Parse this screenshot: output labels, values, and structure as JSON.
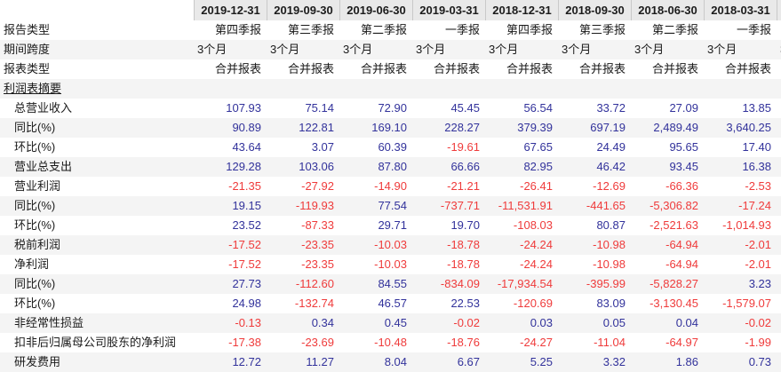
{
  "colors": {
    "positive_value": "#32329b",
    "negative_value": "#ef3b3b",
    "header_bg": "#e9e9e9",
    "stripe_bg": "#f4f4f4",
    "icon_bar_light": "#a6c5e9",
    "icon_bar_mid": "#86afe0",
    "icon_bar_dark": "#5b90d2"
  },
  "table": {
    "date_columns": [
      "2019-12-31",
      "2019-09-30",
      "2019-06-30",
      "2019-03-31",
      "2018-12-31",
      "2018-09-30",
      "2018-06-30",
      "2018-03-31"
    ],
    "meta_rows": [
      {
        "id": "report-type",
        "label": "报告类型",
        "align": "right",
        "values": [
          "第四季报",
          "第三季报",
          "第二季报",
          "一季报",
          "第四季报",
          "第三季报",
          "第二季报",
          "一季报"
        ]
      },
      {
        "id": "period-span",
        "label": "期间跨度",
        "align": "left",
        "values": [
          "3个月",
          "3个月",
          "3个月",
          "3个月",
          "3个月",
          "3个月",
          "3个月",
          "3个月"
        ]
      },
      {
        "id": "statement-type",
        "label": "报表类型",
        "align": "right",
        "values": [
          "合并报表",
          "合并报表",
          "合并报表",
          "合并报表",
          "合并报表",
          "合并报表",
          "合并报表",
          "合并报表"
        ]
      }
    ],
    "section_title": "利润表摘要",
    "data_rows": [
      {
        "label": "总营业收入",
        "values": [
          "107.93",
          "75.14",
          "72.90",
          "45.45",
          "56.54",
          "33.72",
          "27.09",
          "13.85"
        ]
      },
      {
        "label": "同比(%)",
        "values": [
          "90.89",
          "122.81",
          "169.10",
          "228.27",
          "379.39",
          "697.19",
          "2,489.49",
          "3,640.25"
        ]
      },
      {
        "label": "环比(%)",
        "values": [
          "43.64",
          "3.07",
          "60.39",
          "-19.61",
          "67.65",
          "24.49",
          "95.65",
          "17.40"
        ]
      },
      {
        "label": "营业总支出",
        "values": [
          "129.28",
          "103.06",
          "87.80",
          "66.66",
          "82.95",
          "46.42",
          "93.45",
          "16.38"
        ]
      },
      {
        "label": "营业利润",
        "values": [
          "-21.35",
          "-27.92",
          "-14.90",
          "-21.21",
          "-26.41",
          "-12.69",
          "-66.36",
          "-2.53"
        ]
      },
      {
        "label": "同比(%)",
        "values": [
          "19.15",
          "-119.93",
          "77.54",
          "-737.71",
          "-11,531.91",
          "-441.65",
          "-5,306.82",
          "-17.24"
        ]
      },
      {
        "label": "环比(%)",
        "values": [
          "23.52",
          "-87.33",
          "29.71",
          "19.70",
          "-108.03",
          "80.87",
          "-2,521.63",
          "-1,014.93"
        ]
      },
      {
        "label": "税前利润",
        "values": [
          "-17.52",
          "-23.35",
          "-10.03",
          "-18.78",
          "-24.24",
          "-10.98",
          "-64.94",
          "-2.01"
        ]
      },
      {
        "label": "净利润",
        "values": [
          "-17.52",
          "-23.35",
          "-10.03",
          "-18.78",
          "-24.24",
          "-10.98",
          "-64.94",
          "-2.01"
        ]
      },
      {
        "label": "同比(%)",
        "values": [
          "27.73",
          "-112.60",
          "84.55",
          "-834.09",
          "-17,934.54",
          "-395.99",
          "-5,828.27",
          "3.23"
        ]
      },
      {
        "label": "环比(%)",
        "values": [
          "24.98",
          "-132.74",
          "46.57",
          "22.53",
          "-120.69",
          "83.09",
          "-3,130.45",
          "-1,579.07"
        ]
      },
      {
        "label": "非经常性损益",
        "values": [
          "-0.13",
          "0.34",
          "0.45",
          "-0.02",
          "0.03",
          "0.05",
          "0.04",
          "-0.02"
        ]
      },
      {
        "label": "扣非后归属母公司股东的净利润",
        "values": [
          "-17.38",
          "-23.69",
          "-10.48",
          "-18.76",
          "-24.27",
          "-11.04",
          "-64.97",
          "-1.99"
        ]
      },
      {
        "label": "研发费用",
        "values": [
          "12.72",
          "11.27",
          "8.04",
          "6.67",
          "5.25",
          "3.32",
          "1.86",
          "0.73"
        ]
      }
    ],
    "partial_column": {
      "period_span": "3个月"
    },
    "row_icon": "bar-chart-icon"
  }
}
